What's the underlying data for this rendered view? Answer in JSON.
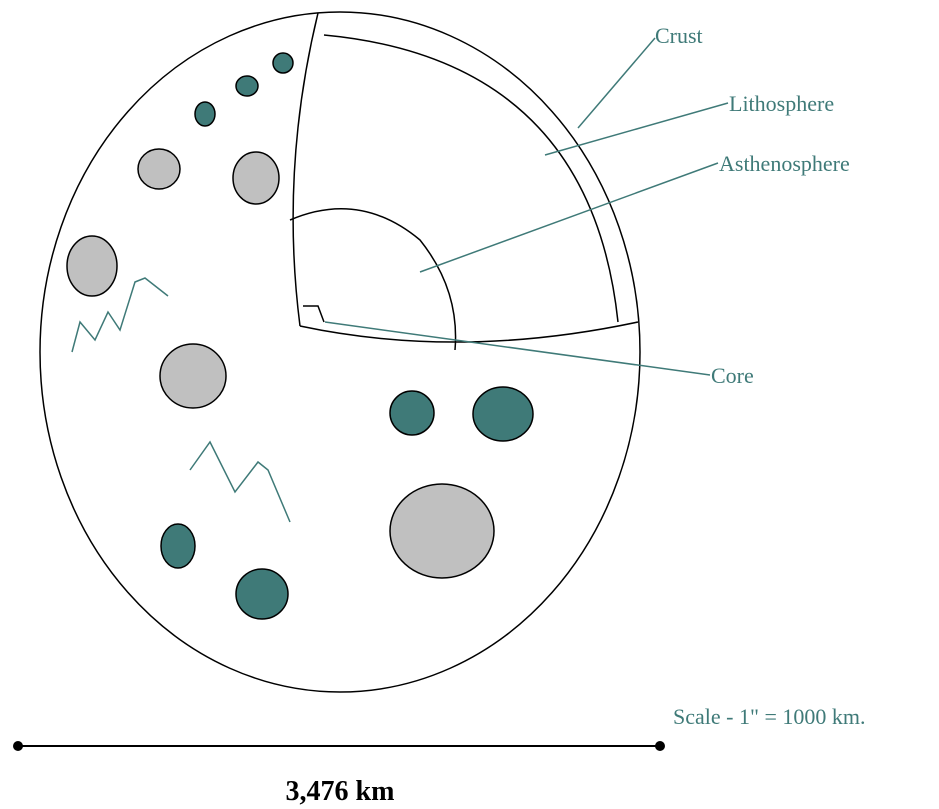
{
  "labels": {
    "crust": "Crust",
    "lithosphere": "Lithosphere",
    "asthenosphere": "Asthenosphere",
    "core": "Core"
  },
  "scale_note": "Scale - 1\" = 1000 km.",
  "diameter": "3,476 km"
}
